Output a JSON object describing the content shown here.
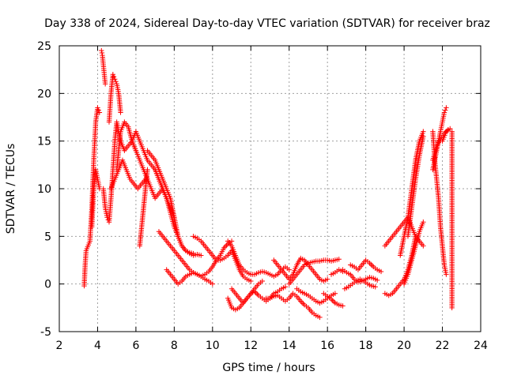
{
  "chart_data": {
    "type": "scatter",
    "title": "Day 338 of 2024, Sidereal Day-to-day VTEC variation (SDTVAR) for receiver braz",
    "xlabel": "GPS time / hours",
    "ylabel": "SDTVAR / TECUs",
    "xlim": [
      2,
      24
    ],
    "ylim": [
      -5,
      25
    ],
    "xticks": [
      2,
      4,
      6,
      8,
      10,
      12,
      14,
      16,
      18,
      20,
      22,
      24
    ],
    "yticks": [
      -5,
      0,
      5,
      10,
      15,
      20,
      25
    ],
    "grid": true,
    "marker": "plus",
    "color": "#ff0000",
    "series": [
      {
        "name": "s1",
        "x": [
          3.3,
          3.35,
          3.4,
          3.6,
          3.7,
          3.8,
          3.9,
          4.0,
          4.1
        ],
        "y": [
          -0.2,
          2,
          3.5,
          4.5,
          8,
          13,
          17,
          18.5,
          18
        ]
      },
      {
        "name": "s2",
        "x": [
          3.7,
          3.8,
          3.9,
          4.0,
          4.1
        ],
        "y": [
          6,
          10,
          12,
          11,
          10
        ]
      },
      {
        "name": "s3",
        "x": [
          4.2,
          4.25,
          4.3,
          4.35,
          4.4
        ],
        "y": [
          24.5,
          24,
          23,
          22,
          21
        ]
      },
      {
        "name": "s4",
        "x": [
          4.3,
          4.4,
          4.5,
          4.6,
          4.7,
          4.8,
          4.9,
          5.0,
          5.1,
          5.2,
          5.4,
          5.6,
          5.8,
          6.0
        ],
        "y": [
          10,
          8,
          7,
          6.5,
          9,
          12,
          15,
          17,
          16,
          15,
          14,
          14.5,
          15,
          14
        ]
      },
      {
        "name": "s5",
        "x": [
          4.6,
          4.7,
          4.8,
          4.9,
          5.0,
          5.1,
          5.2
        ],
        "y": [
          17,
          20,
          22,
          21.5,
          21,
          20,
          18
        ]
      },
      {
        "name": "s6",
        "x": [
          4.7,
          4.9,
          5.1,
          5.3,
          5.5,
          5.7,
          5.9,
          6.1,
          6.3,
          6.5
        ],
        "y": [
          10,
          11,
          12,
          13,
          12,
          11,
          10.5,
          10,
          10.5,
          11
        ]
      },
      {
        "name": "s7",
        "x": [
          5.0,
          5.2,
          5.4,
          5.6,
          5.8,
          6.0,
          6.2,
          6.4,
          6.6,
          6.8,
          7.0,
          7.2,
          7.4,
          7.6
        ],
        "y": [
          12,
          16,
          17,
          16.5,
          15,
          14,
          13,
          12,
          11,
          10,
          9,
          9.5,
          10,
          9
        ]
      },
      {
        "name": "s8",
        "x": [
          5.8,
          6.0,
          6.2,
          6.4,
          6.6,
          6.8,
          7.0,
          7.2,
          7.4,
          7.6,
          7.8,
          8.0
        ],
        "y": [
          15,
          16,
          15,
          14,
          13,
          12.5,
          12,
          11,
          10,
          9,
          8,
          7
        ]
      },
      {
        "name": "s9",
        "x": [
          6.2,
          6.3,
          6.4,
          6.5,
          6.6
        ],
        "y": [
          4,
          6,
          8,
          10,
          12
        ]
      },
      {
        "name": "s10",
        "x": [
          6.6,
          6.8,
          7.0,
          7.2,
          7.4,
          7.6,
          7.8,
          8.0,
          8.2,
          8.4,
          8.6,
          8.8,
          9.0,
          9.2,
          9.4
        ],
        "y": [
          14,
          13.5,
          13,
          12,
          11,
          10,
          9,
          7,
          5,
          4,
          3.5,
          3.2,
          3,
          3.1,
          3
        ]
      },
      {
        "name": "s11",
        "x": [
          7.0,
          7.2,
          7.4,
          7.6,
          7.8,
          8.0,
          8.2,
          8.4,
          8.6,
          8.8,
          9.0
        ],
        "y": [
          12,
          11,
          10,
          9,
          7.5,
          6,
          5,
          4,
          3.5,
          3.3,
          3.2
        ]
      },
      {
        "name": "s12",
        "x": [
          7.2,
          7.4,
          7.6,
          7.8,
          8.0,
          8.2,
          8.4,
          8.6,
          8.8,
          9.0,
          9.2,
          9.4,
          9.6,
          9.8,
          10.0
        ],
        "y": [
          5.5,
          5,
          4.5,
          4,
          3.5,
          3,
          2.5,
          2,
          1.5,
          1.2,
          1,
          0.8,
          0.5,
          0.3,
          0
        ]
      },
      {
        "name": "s13",
        "x": [
          7.6,
          7.8,
          8.0,
          8.2,
          8.4,
          8.6,
          8.8,
          9.0,
          9.2,
          9.4,
          9.6,
          9.8,
          10.0,
          10.2,
          10.4,
          10.6,
          10.8,
          11.0
        ],
        "y": [
          1.5,
          1,
          0.5,
          0,
          0.3,
          0.8,
          1,
          1.2,
          1,
          0.8,
          1,
          1.3,
          1.8,
          2.5,
          3,
          3.8,
          4.2,
          4.5
        ]
      },
      {
        "name": "s14",
        "x": [
          9.0,
          9.2,
          9.4,
          9.6,
          9.8,
          10.0,
          10.2,
          10.4,
          10.6,
          10.8,
          11.0,
          11.2,
          11.4,
          11.6,
          11.8,
          12.0
        ],
        "y": [
          5,
          4.8,
          4.5,
          4,
          3.5,
          3,
          2.5,
          2.5,
          2.7,
          3,
          3.5,
          2.5,
          1.5,
          0.8,
          0.5,
          0.3
        ]
      },
      {
        "name": "s15",
        "x": [
          10.8,
          11.0,
          11.2,
          11.4,
          11.6,
          11.8,
          12.0,
          12.2,
          12.4,
          12.6,
          12.8,
          13.0,
          13.2,
          13.4,
          13.6,
          13.8,
          14.0
        ],
        "y": [
          4.5,
          4,
          3,
          2,
          1.5,
          1.2,
          1,
          1,
          1.2,
          1.3,
          1.2,
          1,
          0.8,
          1,
          1.5,
          1.8,
          1.5
        ]
      },
      {
        "name": "s16",
        "x": [
          10.8,
          11.0,
          11.2,
          11.4,
          11.6,
          11.8,
          12.0,
          12.2,
          12.4,
          12.6,
          12.8,
          13.0,
          13.2,
          13.4,
          13.6,
          13.8
        ],
        "y": [
          -1.5,
          -2.5,
          -2.7,
          -2.5,
          -2,
          -1.5,
          -1,
          -0.8,
          -1.2,
          -1.5,
          -1.8,
          -1.5,
          -1,
          -0.8,
          -0.5,
          -0.3
        ]
      },
      {
        "name": "s17",
        "x": [
          11.0,
          11.2,
          11.4,
          11.6,
          11.8,
          12.0,
          12.2,
          12.4,
          12.6
        ],
        "y": [
          -0.5,
          -1,
          -1.5,
          -2,
          -1.5,
          -1,
          -0.5,
          0,
          0.3
        ]
      },
      {
        "name": "s18",
        "x": [
          12.8,
          13.0,
          13.2,
          13.4,
          13.6,
          13.8,
          14.0,
          14.2,
          14.4,
          14.6,
          14.8,
          15.0,
          15.2,
          15.4,
          15.6
        ],
        "y": [
          -1.5,
          -1.5,
          -1.3,
          -1.2,
          -1.5,
          -1.8,
          -1.5,
          -1,
          -1.3,
          -1.8,
          -2.2,
          -2.5,
          -3,
          -3.3,
          -3.5
        ]
      },
      {
        "name": "s19",
        "x": [
          13.2,
          13.4,
          13.6,
          13.8,
          14.0,
          14.2,
          14.4,
          14.6,
          14.8,
          15.0,
          15.2,
          15.4,
          15.6,
          15.8,
          16.0
        ],
        "y": [
          2.5,
          2,
          1.5,
          1,
          0.5,
          1,
          2,
          2.7,
          2.5,
          2,
          1.5,
          1,
          0.5,
          0.3,
          0.5
        ]
      },
      {
        "name": "s20",
        "x": [
          14.0,
          14.2,
          14.4,
          14.6,
          14.8,
          15.0,
          15.2,
          15.4,
          15.6,
          15.8,
          16.0,
          16.2,
          16.4,
          16.6
        ],
        "y": [
          0,
          0.5,
          1,
          1.5,
          2,
          2.2,
          2.3,
          2.4,
          2.4,
          2.5,
          2.5,
          2.4,
          2.5,
          2.6
        ]
      },
      {
        "name": "s21",
        "x": [
          14.4,
          14.6,
          14.8,
          15.0,
          15.2,
          15.4,
          15.6,
          15.8,
          16.0,
          16.2,
          16.4
        ],
        "y": [
          -0.5,
          -0.8,
          -1,
          -1.2,
          -1.5,
          -1.8,
          -2,
          -1.8,
          -1.5,
          -1.2,
          -1
        ]
      },
      {
        "name": "s22",
        "x": [
          15.8,
          16.0,
          16.2,
          16.4,
          16.6,
          16.8
        ],
        "y": [
          -1,
          -1.3,
          -1.6,
          -2,
          -2.2,
          -2.3
        ]
      },
      {
        "name": "s23",
        "x": [
          16.2,
          16.4,
          16.6,
          16.8
        ],
        "y": [
          1,
          1.2,
          1.5,
          1.3
        ]
      },
      {
        "name": "s24",
        "x": [
          16.8,
          17.0,
          17.2,
          17.4,
          17.6,
          17.8,
          18.0,
          18.2,
          18.4,
          18.6
        ],
        "y": [
          1.5,
          1.2,
          1,
          0.5,
          0.2,
          0.3,
          0.5,
          0.7,
          0.6,
          0.4
        ]
      },
      {
        "name": "s25",
        "x": [
          17.2,
          17.4,
          17.6,
          17.8,
          18.0,
          18.2,
          18.4,
          18.6,
          18.8
        ],
        "y": [
          2,
          1.8,
          1.5,
          2,
          2.5,
          2.2,
          1.8,
          1.5,
          1.3
        ]
      },
      {
        "name": "s26",
        "x": [
          16.9,
          17.1,
          17.3,
          17.5,
          17.7,
          17.9,
          18.1,
          18.3,
          18.5
        ],
        "y": [
          -0.5,
          -0.3,
          0,
          0.3,
          0.5,
          0.3,
          0,
          -0.2,
          -0.3
        ]
      },
      {
        "name": "s27",
        "x": [
          19.0,
          19.2,
          19.4,
          19.6,
          19.8,
          20.0,
          20.2,
          20.4,
          20.6,
          20.8,
          21.0
        ],
        "y": [
          4,
          4.5,
          5,
          5.5,
          6,
          6.5,
          7,
          6,
          5,
          4.5,
          4
        ]
      },
      {
        "name": "s28",
        "x": [
          19.0,
          19.2,
          19.4,
          19.6,
          19.8,
          20.0,
          20.2,
          20.4,
          20.6
        ],
        "y": [
          -1,
          -1.2,
          -1,
          -0.5,
          0,
          0.5,
          1.5,
          3,
          5
        ]
      },
      {
        "name": "s29",
        "x": [
          19.8,
          20.0,
          20.2,
          20.4,
          20.6,
          20.8,
          21.0
        ],
        "y": [
          3,
          5,
          7,
          10,
          13,
          15,
          16
        ]
      },
      {
        "name": "s30",
        "x": [
          20.0,
          20.2,
          20.4,
          20.6,
          20.8,
          21.0
        ],
        "y": [
          0,
          1,
          2.5,
          4,
          5.5,
          6.5
        ]
      },
      {
        "name": "s31",
        "x": [
          20.2,
          20.4,
          20.6,
          20.8,
          21.0
        ],
        "y": [
          5,
          8,
          11,
          13.5,
          15.5
        ]
      },
      {
        "name": "s32",
        "x": [
          21.5,
          21.6,
          21.7,
          21.8,
          21.9,
          22.0,
          22.1,
          22.2
        ],
        "y": [
          16,
          13,
          11,
          9,
          6,
          4,
          2,
          1
        ]
      },
      {
        "name": "s33",
        "x": [
          21.5,
          21.7,
          21.9,
          22.0,
          22.1,
          22.2
        ],
        "y": [
          12,
          14,
          16,
          17,
          18,
          18.5
        ]
      },
      {
        "name": "s34",
        "x": [
          21.5,
          21.7,
          21.9,
          22.1,
          22.3
        ],
        "y": [
          13,
          14.5,
          15.2,
          15.8,
          16.2
        ]
      },
      {
        "name": "s35",
        "x": [
          22.0,
          22.2,
          22.4
        ],
        "y": [
          15,
          16,
          16.3
        ]
      },
      {
        "name": "s36",
        "x": [
          22.5,
          22.5
        ],
        "y": [
          16,
          -2.5
        ]
      }
    ]
  }
}
